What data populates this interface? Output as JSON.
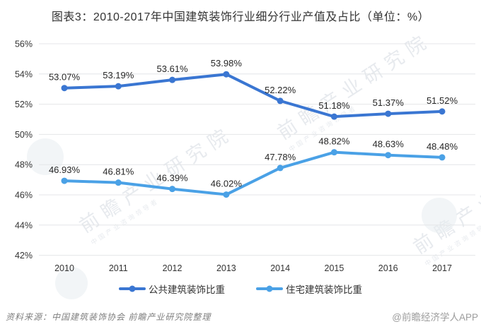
{
  "title": "图表3：2010-2017年中国建筑装饰行业细分行业产值及占比（单位：%）",
  "chart_data": {
    "type": "line",
    "categories": [
      "2010",
      "2011",
      "2012",
      "2013",
      "2014",
      "2015",
      "2016",
      "2017"
    ],
    "series": [
      {
        "name": "公共建筑装饰比重",
        "color": "#3a76d2",
        "values": [
          53.07,
          53.19,
          53.61,
          53.98,
          52.22,
          51.18,
          51.37,
          51.52
        ]
      },
      {
        "name": "住宅建筑装饰比重",
        "color": "#4aa1e6",
        "values": [
          46.93,
          46.81,
          46.39,
          46.02,
          47.78,
          48.82,
          48.63,
          48.48
        ]
      }
    ],
    "ylim": [
      42,
      56
    ],
    "ytick_step": 2,
    "ytick_suffix": "%",
    "data_label_suffix": "%",
    "grid": true,
    "gridline_color": "#e4e6e8",
    "legend_position": "bottom"
  },
  "watermark": {
    "text": "前瞻产业研究院",
    "subtext": "中国产业咨询领导者"
  },
  "footer": {
    "source": "资料来源：中国建筑装饰协会  前瞻产业研究院整理",
    "credit": "@前瞻经济学人APP"
  }
}
